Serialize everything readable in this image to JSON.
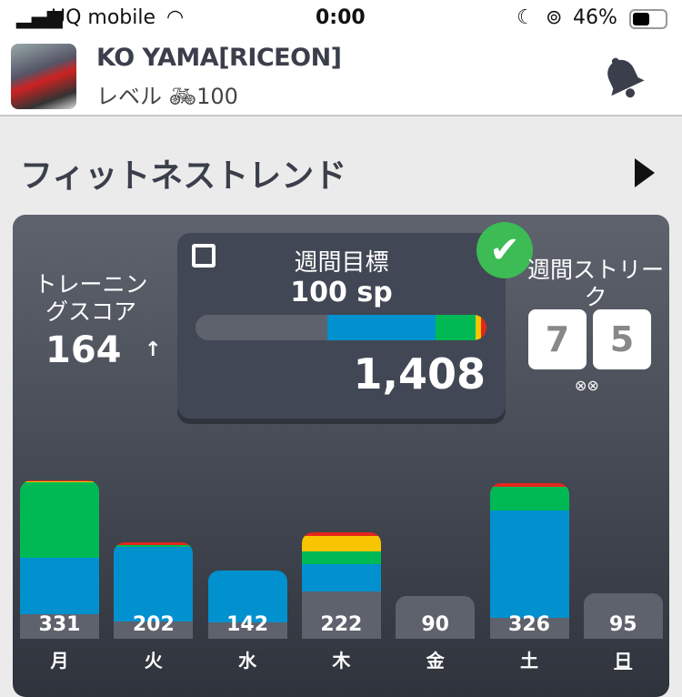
{
  "status": {
    "carrier": "UQ mobile",
    "time": "0:00",
    "battery": "46%"
  },
  "profile": {
    "name": "KO YAMA[RICEON]",
    "level_label": "レベル",
    "level": "100"
  },
  "section": {
    "title": "フィットネストレンド"
  },
  "training_score": {
    "label": "トレーニングスコア",
    "value": "164",
    "trend": "↑"
  },
  "weekly_goal": {
    "title": "週間目標",
    "goal": "100 sp",
    "total": "1,408",
    "achieved": true,
    "progress_segments": [
      {
        "zone": "gray",
        "value": 145
      },
      {
        "zone": "blue",
        "value": 119
      },
      {
        "zone": "green",
        "value": 44
      },
      {
        "zone": "yellow",
        "value": 6
      },
      {
        "zone": "red",
        "value": 6
      }
    ]
  },
  "streak": {
    "label": "週間ストリーク",
    "digits": [
      "7",
      "5"
    ]
  },
  "colors": {
    "gray": "#5d626d",
    "blue": "#0091ce",
    "green": "#00b955",
    "yellow": "#f8c500",
    "red": "#e3271c"
  },
  "chart_data": {
    "type": "bar",
    "stacked": true,
    "categories": [
      "月",
      "火",
      "水",
      "木",
      "金",
      "土",
      "日"
    ],
    "totals": [
      331,
      202,
      142,
      222,
      90,
      326,
      95
    ],
    "series": [
      {
        "zone": "gray",
        "values": [
          51,
          36,
          34,
          99,
          90,
          44,
          95
        ]
      },
      {
        "zone": "blue",
        "values": [
          118,
          156,
          108,
          57,
          0,
          225,
          0
        ]
      },
      {
        "zone": "green",
        "values": [
          158,
          4,
          0,
          27,
          0,
          50,
          0
        ]
      },
      {
        "zone": "yellow",
        "values": [
          2,
          0,
          0,
          32,
          0,
          0,
          0
        ]
      },
      {
        "zone": "red",
        "values": [
          2,
          6,
          0,
          7,
          0,
          7,
          0
        ]
      }
    ]
  }
}
